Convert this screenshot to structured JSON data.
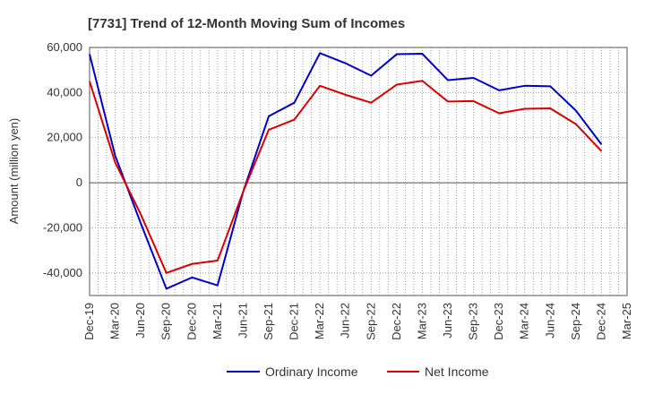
{
  "chart_data": {
    "type": "line",
    "title": "[7731]  Trend of 12-Month Moving Sum of Incomes",
    "xlabel": "",
    "ylabel": "Amount (million yen)",
    "ylim": [
      -50000,
      60000
    ],
    "yticks": [
      60000,
      40000,
      20000,
      0,
      -20000,
      -40000
    ],
    "ytick_labels": [
      "60,000",
      "40,000",
      "20,000",
      "0",
      "-20,000",
      "-40,000"
    ],
    "x": [
      "Dec-19",
      "Mar-20",
      "Jun-20",
      "Sep-20",
      "Dec-20",
      "Mar-21",
      "Jun-21",
      "Sep-21",
      "Dec-21",
      "Mar-22",
      "Jun-22",
      "Sep-22",
      "Dec-22",
      "Mar-23",
      "Jun-23",
      "Sep-23",
      "Dec-23",
      "Mar-24",
      "Jun-24",
      "Sep-24",
      "Dec-24",
      "Mar-25"
    ],
    "grid": true,
    "legend_position": "bottom-center",
    "series": [
      {
        "name": "Ordinary Income",
        "color": "#0000cc",
        "points": [
          [
            0,
            57000
          ],
          [
            1,
            12000
          ],
          [
            2,
            -18000
          ],
          [
            3,
            -47000
          ],
          [
            4,
            -42000
          ],
          [
            5,
            -45500
          ],
          [
            6,
            -4000
          ],
          [
            7,
            29500
          ],
          [
            8,
            35500
          ],
          [
            9,
            57500
          ],
          [
            10,
            53000
          ],
          [
            11,
            47500
          ],
          [
            12,
            57000
          ],
          [
            13,
            57200
          ],
          [
            14,
            45500
          ],
          [
            15,
            46500
          ],
          [
            16,
            41000
          ],
          [
            17,
            43000
          ],
          [
            18,
            42800
          ],
          [
            19,
            32000
          ],
          [
            20,
            17000
          ]
        ]
      },
      {
        "name": "Net Income",
        "color": "#dd0000",
        "points": [
          [
            0,
            45000
          ],
          [
            1,
            9000
          ],
          [
            2,
            -14000
          ],
          [
            3,
            -40000
          ],
          [
            4,
            -36000
          ],
          [
            5,
            -34500
          ],
          [
            6,
            -4000
          ],
          [
            7,
            23500
          ],
          [
            8,
            28000
          ],
          [
            9,
            43000
          ],
          [
            10,
            39000
          ],
          [
            11,
            35500
          ],
          [
            12,
            43500
          ],
          [
            13,
            45200
          ],
          [
            14,
            36000
          ],
          [
            15,
            36200
          ],
          [
            16,
            30800
          ],
          [
            17,
            32800
          ],
          [
            18,
            33000
          ],
          [
            19,
            26000
          ],
          [
            20,
            14000
          ]
        ]
      }
    ]
  }
}
